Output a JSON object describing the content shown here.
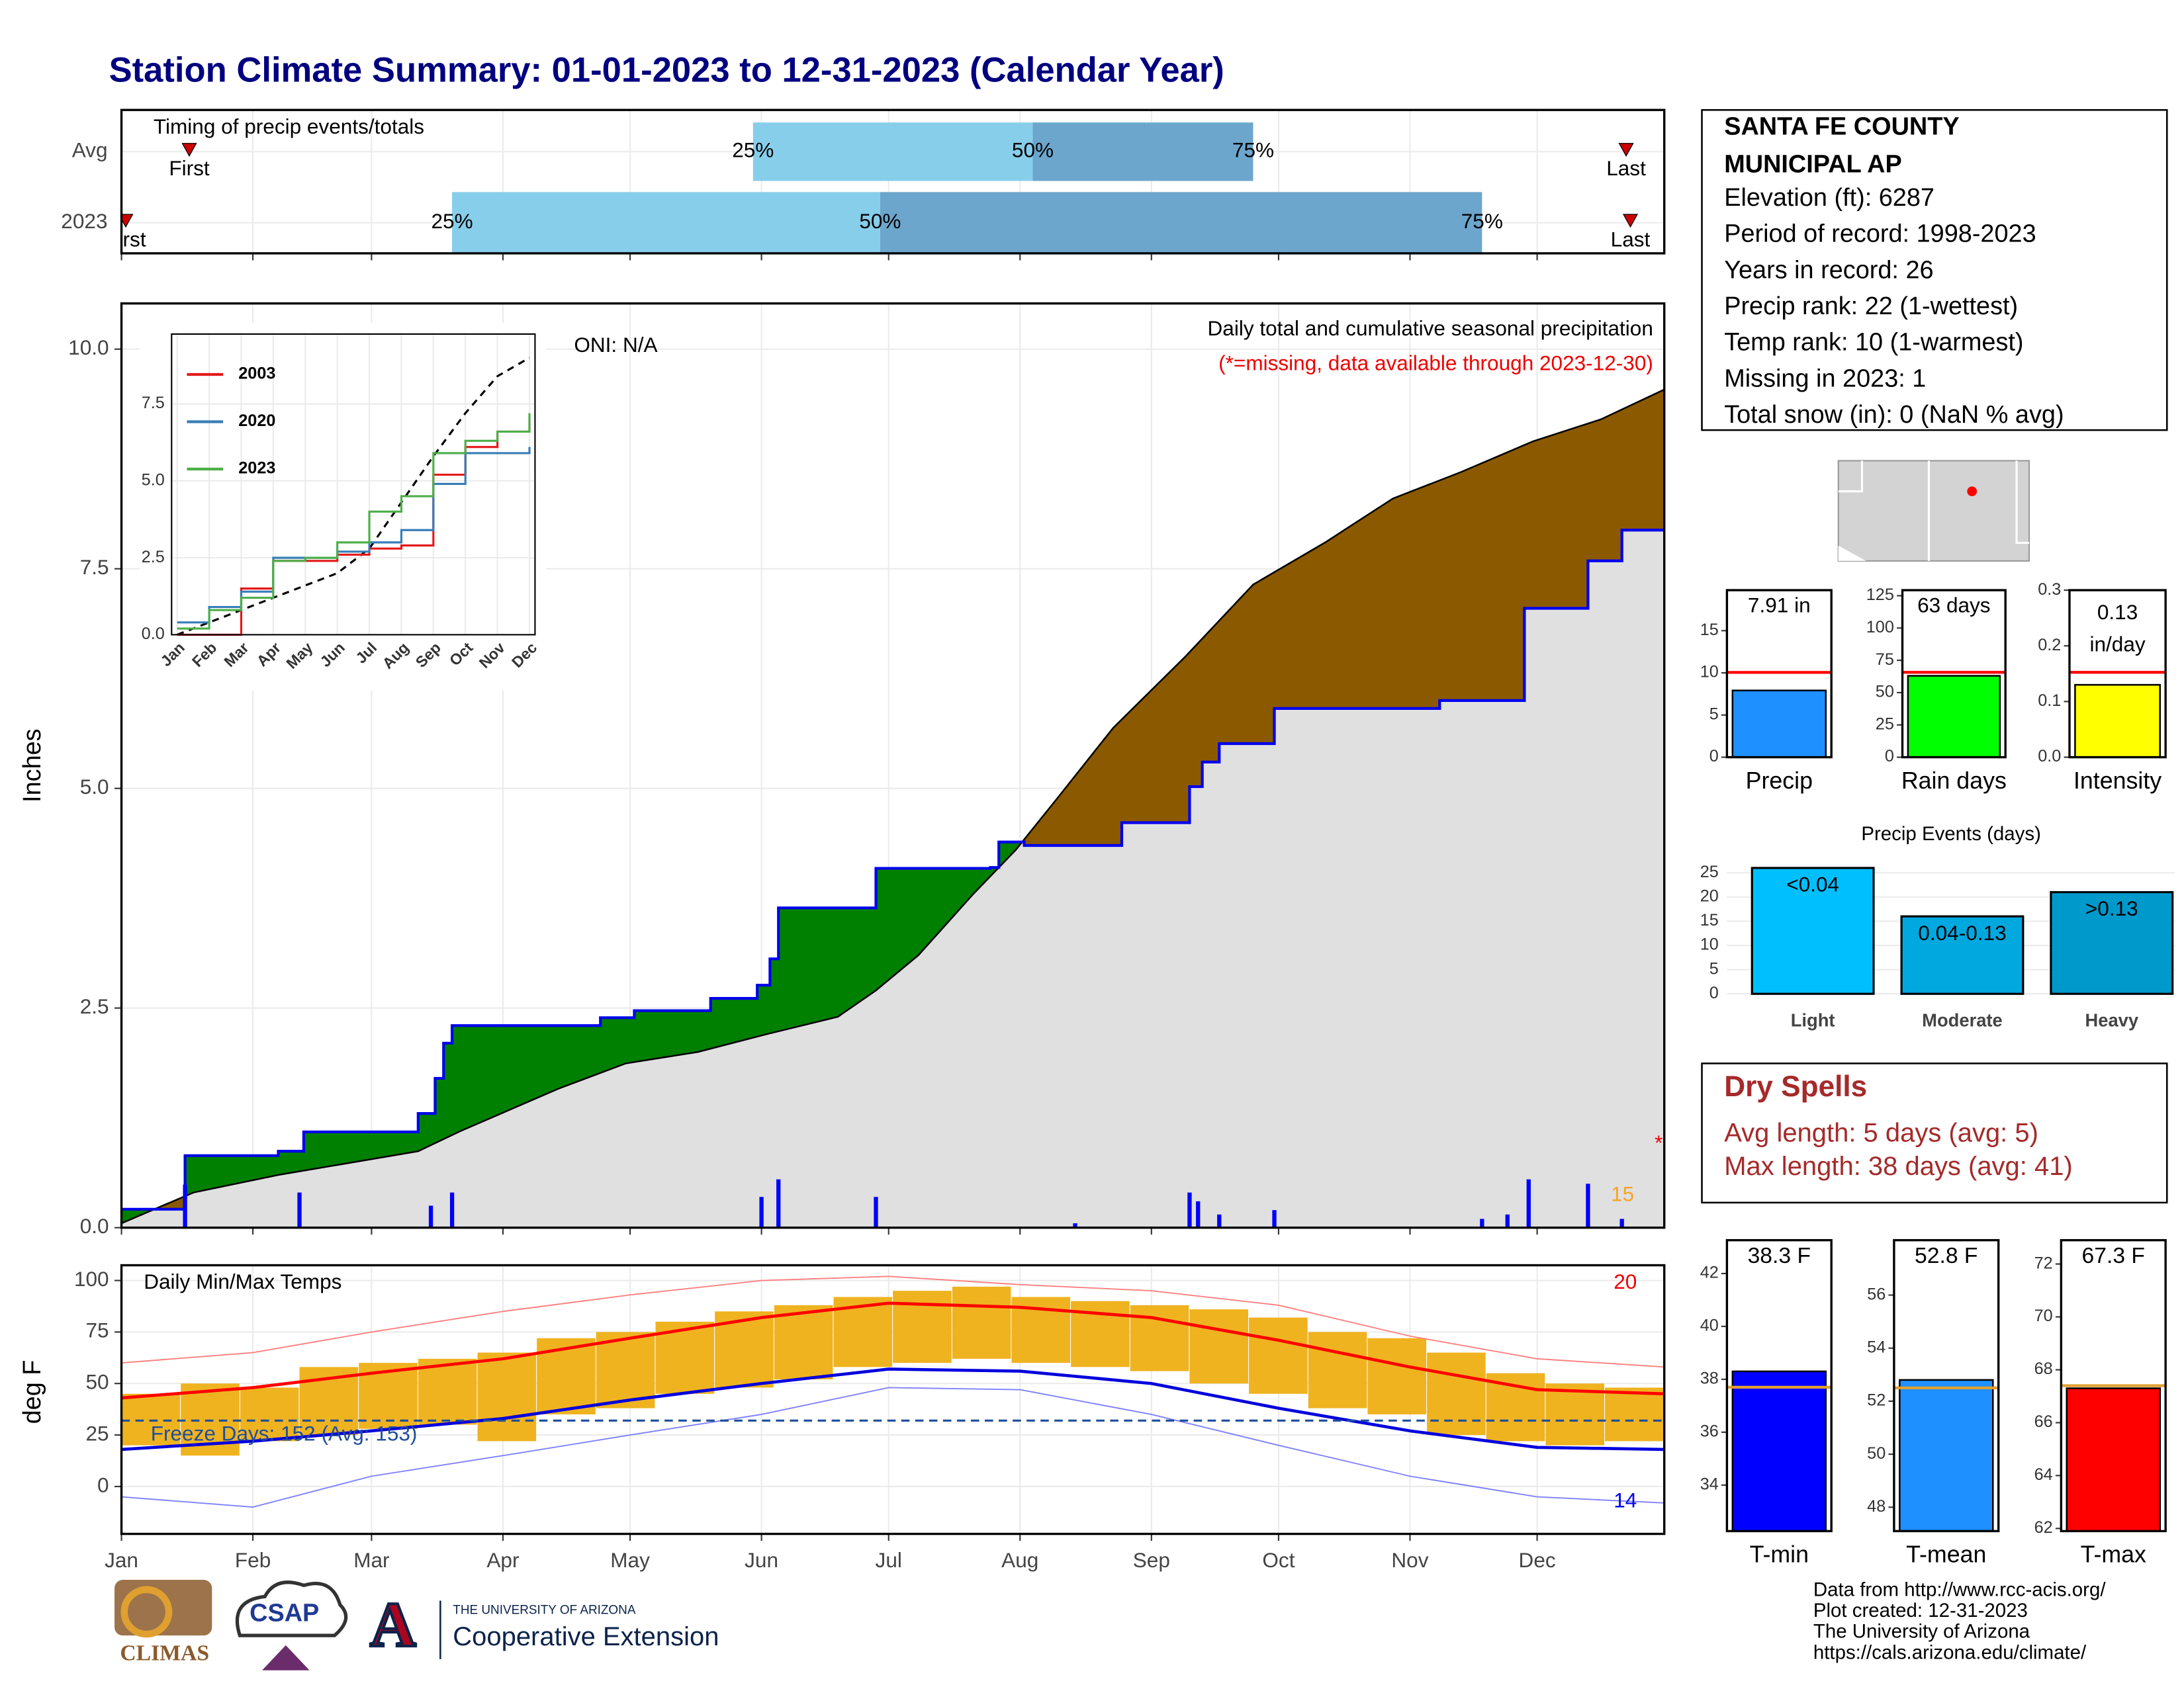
{
  "title": "Station Climate Summary: 01-01-2023 to 12-31-2023 (Calendar Year)",
  "station": {
    "name_lines": [
      "SANTA FE COUNTY",
      "MUNICIPAL AP"
    ],
    "lines": [
      "Elevation (ft): 6287",
      "Period of record: 1998-2023",
      "Years in record: 26",
      "Precip rank: 22 (1-wettest)",
      "Temp rank: 10 (1-warmest)",
      "Missing in 2023: 1",
      "Total snow (in): 0 (NaN % avg)"
    ]
  },
  "dry_spells": {
    "title": "Dry Spells",
    "lines": [
      "Avg length: 5 days (avg: 5)",
      "Max length: 38 days (avg: 41)"
    ]
  },
  "footer": {
    "lines": [
      "Data from http://www.rcc-acis.org/",
      "Plot created: 12-31-2023",
      "The University of Arizona",
      "https://cals.arizona.edu/climate/"
    ]
  },
  "logos": {
    "climas": "CLIMAS",
    "csap": "CSAP",
    "mark": "A",
    "university": "THE UNIVERSITY OF ARIZONA",
    "extension": "Cooperative Extension"
  },
  "chart_data": [
    {
      "type": "timing",
      "title": "Timing of precip events/totals",
      "categories": [
        "Avg",
        "2023"
      ],
      "rows": [
        {
          "first": 16,
          "q25": 149,
          "q50": 215,
          "q75": 267,
          "last": 355
        },
        {
          "first": 1,
          "q25": 78,
          "q50": 179,
          "q75": 321,
          "last": 356
        }
      ],
      "labels": {
        "first": "First",
        "last": "Last",
        "q25": "25%",
        "q50": "50%",
        "q75": "75%"
      },
      "colors": {
        "early": "#87ceeb",
        "late": "#6ca6cd",
        "marker": "#cc0000"
      },
      "xlim": [
        0,
        364
      ]
    },
    {
      "type": "cumulative",
      "title": "Daily total and cumulative seasonal precipitation",
      "subtitle": "(*=missing, data available through 2023-12-30)",
      "annotation": "ONI: N/A",
      "ylabel": "Inches",
      "observed": {
        "x": [
          0,
          15,
          37,
          43,
          70,
          74,
          76,
          78,
          113,
          121,
          139,
          150,
          153,
          155,
          178,
          205,
          207,
          213,
          236,
          252,
          255,
          259,
          272,
          311,
          331,
          346,
          354,
          364
        ],
        "values": [
          0.21,
          0.82,
          0.87,
          1.09,
          1.3,
          1.7,
          2.1,
          2.3,
          2.39,
          2.47,
          2.61,
          2.76,
          3.06,
          3.64,
          4.09,
          4.1,
          4.39,
          4.35,
          4.61,
          5.02,
          5.3,
          5.51,
          5.91,
          6.0,
          7.05,
          7.59,
          7.94,
          7.94
        ]
      },
      "average": {
        "x": [
          0,
          17,
          37,
          70,
          80,
          103,
          119,
          136,
          152,
          169,
          178,
          188,
          201,
          211,
          221,
          234,
          251,
          267,
          284,
          300,
          316,
          333,
          349,
          364
        ],
        "values": [
          0.05,
          0.4,
          0.6,
          0.87,
          1.1,
          1.58,
          1.87,
          2.0,
          2.2,
          2.4,
          2.7,
          3.1,
          3.8,
          4.3,
          4.9,
          5.69,
          6.5,
          7.32,
          7.8,
          8.3,
          8.6,
          8.95,
          9.2,
          9.54
        ]
      },
      "daily": {
        "x": [
          15,
          42,
          73,
          78,
          151,
          155,
          178,
          225,
          252,
          254,
          259,
          272,
          321,
          327,
          332,
          346,
          354
        ],
        "values": [
          0.49,
          0.4,
          0.25,
          0.4,
          0.35,
          0.55,
          0.35,
          0.05,
          0.4,
          0.3,
          0.15,
          0.2,
          0.1,
          0.15,
          0.55,
          0.5,
          0.1
        ]
      },
      "colors": {
        "above": "#008000",
        "below": "#8b5a00",
        "base": "#e0e0e0",
        "line": "#0000ee",
        "average": "#000000",
        "daily": "#0000ff"
      },
      "missing_count": 15,
      "missing_mark": "*",
      "ylim": [
        0,
        10.52
      ],
      "yticks": [
        {
          "value": 0,
          "label": "0.0"
        },
        {
          "value": 2.5,
          "label": "2.5"
        },
        {
          "value": 5,
          "label": "5.0"
        },
        {
          "value": 7.5,
          "label": "7.5"
        },
        {
          "value": 10,
          "label": "10.0"
        }
      ]
    },
    {
      "type": "line",
      "categories": [
        "Jan",
        "Feb",
        "Mar",
        "Apr",
        "May",
        "Jun",
        "Jul",
        "Aug",
        "Sep",
        "Oct",
        "Nov",
        "Dec"
      ],
      "series": [
        {
          "name": "2003",
          "color": "#e41a1c",
          "values": [
            0,
            0,
            1.5,
            2.4,
            2.4,
            2.6,
            2.8,
            2.9,
            5.2,
            6.1,
            6.6,
            7.0
          ]
        },
        {
          "name": "2020",
          "color": "#377eb8",
          "values": [
            0.4,
            0.9,
            1.4,
            2.5,
            2.5,
            2.7,
            3.0,
            3.4,
            4.9,
            5.9,
            5.9,
            6.1
          ]
        },
        {
          "name": "2023",
          "color": "#4daf4a",
          "values": [
            0.2,
            0.8,
            1.2,
            2.4,
            2.5,
            3.0,
            4.0,
            4.5,
            5.9,
            6.3,
            6.6,
            7.2
          ]
        }
      ],
      "average_values": [
        0,
        0.4,
        0.8,
        1.2,
        1.6,
        2.0,
        2.8,
        4.3,
        5.8,
        7.2,
        8.4,
        9.0
      ],
      "average_color": "#000000",
      "ylim": [
        0,
        9.77
      ],
      "yticks": [
        {
          "value": 0,
          "label": "0.0"
        },
        {
          "value": 2.5,
          "label": "2.5"
        },
        {
          "value": 5,
          "label": "5.0"
        },
        {
          "value": 7.5,
          "label": "7.5"
        }
      ]
    },
    {
      "type": "temperature",
      "title": "Daily Min/Max Temps",
      "ylabel": "deg F",
      "x": [
        0,
        31,
        59,
        90,
        120,
        151,
        181,
        212,
        243,
        273,
        304,
        334,
        364
      ],
      "avg_max": [
        43,
        48,
        55,
        62,
        72,
        82,
        89,
        87,
        82,
        71,
        58,
        47,
        45
      ],
      "avg_min": [
        18,
        22,
        27,
        33,
        42,
        50,
        57,
        56,
        50,
        38,
        27,
        19,
        18
      ],
      "record_max": [
        60,
        65,
        75,
        85,
        93,
        100,
        102,
        98,
        95,
        88,
        73,
        62,
        58
      ],
      "record_min": [
        -5,
        -10,
        5,
        15,
        25,
        35,
        48,
        47,
        35,
        20,
        5,
        -5,
        -8
      ],
      "daily": {
        "x": [
          0,
          14,
          28,
          42,
          56,
          70,
          84,
          98,
          112,
          126,
          140,
          154,
          168,
          182,
          196,
          210,
          224,
          238,
          252,
          266,
          280,
          294,
          308,
          322,
          336,
          350
        ],
        "low": [
          20,
          15,
          22,
          25,
          28,
          30,
          22,
          35,
          38,
          45,
          48,
          52,
          58,
          60,
          62,
          60,
          58,
          56,
          50,
          45,
          38,
          35,
          25,
          22,
          20,
          22
        ],
        "high": [
          45,
          50,
          48,
          58,
          60,
          62,
          65,
          72,
          75,
          80,
          85,
          88,
          92,
          95,
          97,
          92,
          90,
          88,
          86,
          82,
          75,
          72,
          65,
          55,
          50,
          48
        ]
      },
      "bar_width_days": 14,
      "colors": {
        "bars": "#efb320",
        "avg_max": "#ff0000",
        "avg_min": "#0000dd",
        "record_max": "#ff8080",
        "record_min": "#8080ff",
        "freeze": "#1f4e9a"
      },
      "freeze_threshold": 32,
      "freeze_label": "Freeze Days: 152 (Avg: 153)",
      "record_high_count": 20,
      "record_low_count": 14,
      "xlim": [
        0,
        364
      ],
      "xticks": [
        {
          "value": 0,
          "label": "Jan"
        },
        {
          "value": 31,
          "label": "Feb"
        },
        {
          "value": 59,
          "label": "Mar"
        },
        {
          "value": 90,
          "label": "Apr"
        },
        {
          "value": 120,
          "label": "May"
        },
        {
          "value": 151,
          "label": "Jun"
        },
        {
          "value": 181,
          "label": "Jul"
        },
        {
          "value": 212,
          "label": "Aug"
        },
        {
          "value": 243,
          "label": "Sep"
        },
        {
          "value": 273,
          "label": "Oct"
        },
        {
          "value": 304,
          "label": "Nov"
        },
        {
          "value": 334,
          "label": "Dec"
        }
      ],
      "ylim": [
        -23,
        107.4
      ],
      "yticks": [
        0,
        25,
        50,
        75,
        100
      ]
    },
    {
      "type": "summary_bar",
      "label": "Precip",
      "value": 7.91,
      "value_label_lines": [
        "7.91 in"
      ],
      "average": 10.05,
      "color": "#1e90ff",
      "average_color": "#ff0000",
      "ylim": [
        0,
        19.8
      ],
      "yticks": [
        0,
        5,
        10,
        15
      ]
    },
    {
      "type": "summary_bar",
      "label": "Rain days",
      "value": 63,
      "value_label_lines": [
        "63 days"
      ],
      "average": 65.7,
      "color": "#00ff00",
      "average_color": "#ff0000",
      "ylim": [
        0,
        129.3
      ],
      "yticks": [
        0,
        25,
        50,
        75,
        100,
        125
      ]
    },
    {
      "type": "summary_bar",
      "label": "Intensity",
      "value": 0.13,
      "value_label_lines": [
        "0.13",
        "in/day"
      ],
      "average": 0.1525,
      "color": "#ffff00",
      "average_color": "#ff0000",
      "ylim": [
        0,
        0.3
      ],
      "yticks": [
        {
          "value": 0,
          "label": "0.0"
        },
        {
          "value": 0.1,
          "label": "0.1"
        },
        {
          "value": 0.2,
          "label": "0.2"
        },
        {
          "value": 0.3,
          "label": "0.3"
        }
      ]
    },
    {
      "type": "bar",
      "title": "Precip Events (days)",
      "categories": [
        "Light",
        "Moderate",
        "Heavy"
      ],
      "bin_labels": [
        "<0.04",
        "0.04-0.13",
        ">0.13"
      ],
      "values": [
        26,
        16,
        21
      ],
      "colors": [
        "#00bfff",
        "#00a8e0",
        "#0099cc"
      ],
      "ylim": [
        -1.15,
        27.6
      ],
      "yticks": [
        0,
        5,
        10,
        15,
        20,
        25
      ]
    },
    {
      "type": "summary_bar",
      "label": "T-min",
      "value": 38.3,
      "value_label_lines": [
        "38.3 F"
      ],
      "average": 37.7,
      "color": "#0000ff",
      "average_color": "#e0a030",
      "ylim": [
        32.26,
        43.26
      ],
      "yticks": [
        34,
        36,
        38,
        40,
        42
      ]
    },
    {
      "type": "summary_bar",
      "label": "T-mean",
      "value": 52.8,
      "value_label_lines": [
        "52.8 F"
      ],
      "average": 52.5,
      "color": "#1e90ff",
      "average_color": "#e0a030",
      "ylim": [
        47.1,
        58.07
      ],
      "yticks": [
        48,
        50,
        52,
        54,
        56
      ]
    },
    {
      "type": "summary_bar",
      "label": "T-max",
      "value": 67.3,
      "value_label_lines": [
        "67.3 F"
      ],
      "average": 67.4,
      "color": "#ff0000",
      "average_color": "#e0a030",
      "ylim": [
        61.9,
        72.9
      ],
      "yticks": [
        62,
        64,
        66,
        68,
        70,
        72
      ]
    }
  ]
}
